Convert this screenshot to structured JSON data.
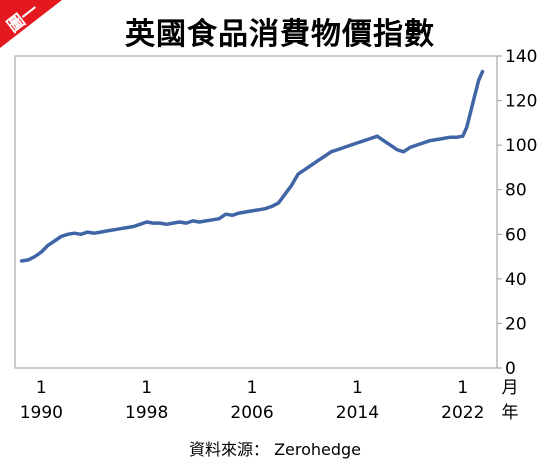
{
  "badge": {
    "text": "圖一",
    "color": "#e3191f"
  },
  "source": {
    "label": "資料來源：",
    "value": "Zerohedge"
  },
  "colors": {
    "line": "#3f65a6",
    "plot_border": "#9a9a9a",
    "badge": "#e3191f"
  },
  "chart_data": {
    "type": "line",
    "title": "英國食品消費物價指數",
    "xlabel": "月\n年",
    "xlabel_month": "月",
    "xlabel_year": "年",
    "ylabel": "",
    "ylim": [
      0,
      140
    ],
    "y_ticks": [
      0,
      20,
      40,
      60,
      80,
      100,
      120,
      140
    ],
    "x_ticks": [
      {
        "x": 1990,
        "month": "1",
        "year": "1990"
      },
      {
        "x": 1998,
        "month": "1",
        "year": "1998"
      },
      {
        "x": 2006,
        "month": "1",
        "year": "2006"
      },
      {
        "x": 2014,
        "month": "1",
        "year": "2014"
      },
      {
        "x": 2022,
        "month": "1",
        "year": "2022"
      }
    ],
    "grid": false,
    "legend": "none",
    "series": [
      {
        "x": [
          1988.5,
          1989.0,
          1989.5,
          1990.0,
          1990.5,
          1991.0,
          1991.5,
          1992.0,
          1992.5,
          1993.0,
          1993.5,
          1994.0,
          1994.5,
          1995.0,
          1995.5,
          1996.0,
          1996.5,
          1997.0,
          1997.5,
          1998.0,
          1998.5,
          1999.0,
          1999.5,
          2000.0,
          2000.5,
          2001.0,
          2001.5,
          2002.0,
          2002.5,
          2003.0,
          2003.5,
          2004.0,
          2004.5,
          2005.0,
          2005.5,
          2006.0,
          2006.5,
          2007.0,
          2007.5,
          2008.0,
          2008.5,
          2009.0,
          2009.5,
          2010.0,
          2010.5,
          2011.0,
          2011.5,
          2012.0,
          2012.5,
          2013.0,
          2013.5,
          2014.0,
          2014.5,
          2015.0,
          2015.5,
          2016.0,
          2016.5,
          2017.0,
          2017.5,
          2018.0,
          2018.5,
          2019.0,
          2019.5,
          2020.0,
          2020.5,
          2021.0,
          2021.5,
          2022.0,
          2022.3,
          2022.6,
          2022.9,
          2023.2,
          2023.5
        ],
        "values": [
          48,
          48.5,
          50,
          52,
          55,
          57,
          59,
          60,
          60.5,
          60,
          61,
          60.5,
          61,
          61.5,
          62,
          62.5,
          63,
          63.5,
          64.5,
          65.5,
          65,
          65,
          64.5,
          65,
          65.5,
          65,
          66,
          65.5,
          66,
          66.5,
          67,
          69,
          68.5,
          69.5,
          70,
          70.5,
          71,
          71.5,
          72.5,
          74,
          78,
          82,
          87,
          89,
          91,
          93,
          95,
          97,
          98,
          99,
          100,
          101,
          102,
          103,
          104,
          102,
          100,
          98,
          97,
          99,
          100,
          101,
          102,
          102.5,
          103,
          103.5,
          103.5,
          104,
          108,
          115,
          122,
          129,
          133
        ]
      }
    ]
  }
}
